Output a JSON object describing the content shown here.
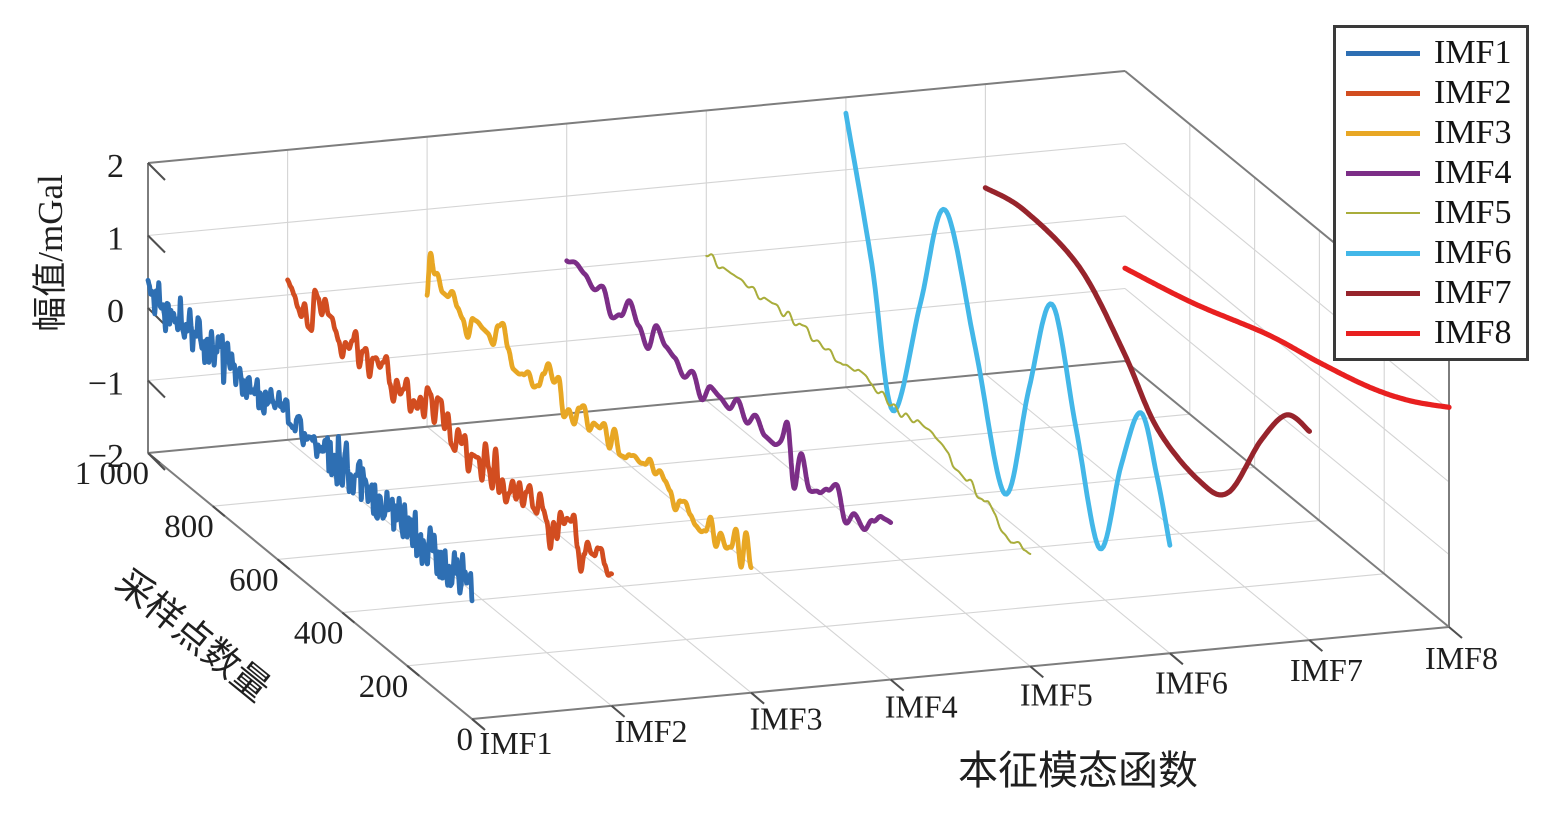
{
  "figure": {
    "background": "#ffffff"
  },
  "chart_data": {
    "type": "line3d_waterfall",
    "title": "",
    "grid": true,
    "x_axis": {
      "label": "本征模态函数",
      "categories": [
        "IMF1",
        "IMF2",
        "IMF3",
        "IMF4",
        "IMF5",
        "IMF6",
        "IMF7",
        "IMF8"
      ],
      "positions": [
        1,
        2,
        3,
        4,
        5,
        6,
        7,
        8
      ],
      "range": [
        1,
        8
      ]
    },
    "y_axis": {
      "label": "采样点数量",
      "range": [
        0,
        1000
      ],
      "ticks": [
        0,
        200,
        400,
        600,
        800,
        1000
      ],
      "tick_labels": [
        "0",
        "200",
        "400",
        "600",
        "800",
        "1 000"
      ]
    },
    "z_axis": {
      "label": "幅值/mGal",
      "range": [
        -2,
        2
      ],
      "ticks": [
        2,
        1,
        0,
        -1,
        -2
      ],
      "tick_labels": [
        "2",
        "1",
        "0",
        "−1",
        "−2"
      ]
    },
    "legend": {
      "position": "top-right",
      "border_color": "#3a3a3a",
      "entries": [
        "IMF1",
        "IMF2",
        "IMF3",
        "IMF4",
        "IMF5",
        "IMF6",
        "IMF7",
        "IMF8"
      ]
    },
    "colors": {
      "grid": "#d4d4d4",
      "box_edge": "#7d7d7d",
      "tick_mark": "#4f4f4f",
      "text": "#1f1f1f"
    },
    "series": [
      {
        "name": "IMF1",
        "x": 1,
        "color": "#2e6fb3",
        "line_width": 4.8,
        "kind": "noise",
        "mean_points": [
          [
            0,
            -0.15
          ],
          [
            1000,
            0.24
          ]
        ],
        "noise": {
          "seed": 101,
          "knots": 240,
          "amp": 0.3,
          "env_seed": 201,
          "env_knots": 8
        },
        "spikes": []
      },
      {
        "name": "IMF2",
        "x": 2,
        "color": "#d24d20",
        "line_width": 4.8,
        "kind": "noise",
        "mean_points": [
          [
            0,
            -0.25
          ],
          [
            1000,
            0.15
          ]
        ],
        "noise": {
          "seed": 102,
          "knots": 95,
          "amp": 0.33,
          "env_seed": 202,
          "env_knots": 7
        },
        "spikes": []
      },
      {
        "name": "IMF3",
        "x": 3,
        "color": "#e8a724",
        "line_width": 4.8,
        "kind": "noise",
        "mean_points": [
          [
            0,
            -0.16
          ],
          [
            1000,
            0.05
          ]
        ],
        "noise": {
          "seed": 103,
          "knots": 64,
          "amp": 0.26,
          "env_seed": 203,
          "env_knots": 7
        },
        "spikes": [
          [
            990,
            0.38,
            9
          ],
          [
            1000,
            -0.34,
            6
          ]
        ]
      },
      {
        "name": "IMF4",
        "x": 4,
        "color": "#7c2e87",
        "line_width": 4.8,
        "kind": "noise",
        "mean_points": [
          [
            0,
            -0.12
          ],
          [
            1000,
            0.0
          ]
        ],
        "noise": {
          "seed": 104,
          "knots": 36,
          "amp": 0.24,
          "env_seed": 204,
          "env_knots": 6
        },
        "spikes": [
          [
            318,
            0.42,
            13
          ],
          [
            298,
            -0.48,
            13
          ]
        ]
      },
      {
        "name": "IMF5",
        "x": 5,
        "color": "#a9ad3b",
        "line_width": 2.0,
        "kind": "noise",
        "mean_points": [
          [
            0,
            -0.4
          ],
          [
            60,
            -0.54
          ],
          [
            130,
            -0.28
          ],
          [
            300,
            0.02
          ],
          [
            520,
            0.1
          ],
          [
            780,
            0.07
          ],
          [
            1000,
            0.02
          ]
        ],
        "noise": {
          "seed": 105,
          "knots": 55,
          "amp": 0.075,
          "env_seed": 205,
          "env_knots": 5
        },
        "spikes": []
      },
      {
        "name": "IMF6",
        "x": 6,
        "color": "#43b7e8",
        "line_width": 4.8,
        "kind": "smooth",
        "points": [
          [
            0,
            -0.51
          ],
          [
            40,
            0.3
          ],
          [
            90,
            0.99
          ],
          [
            150,
            0.05
          ],
          [
            216,
            -1.35
          ],
          [
            290,
            0.05
          ],
          [
            364,
            1.48
          ],
          [
            435,
            0.05
          ],
          [
            509,
            -1.67
          ],
          [
            600,
            0.0
          ],
          [
            694,
            1.57
          ],
          [
            770,
            0.0
          ],
          [
            855,
            -1.79
          ],
          [
            920,
            0.0
          ],
          [
            1000,
            1.78
          ]
        ]
      },
      {
        "name": "IMF7",
        "x": 7,
        "color": "#97242c",
        "line_width": 5.2,
        "kind": "smooth",
        "points": [
          [
            0,
            0.88
          ],
          [
            70,
            0.85
          ],
          [
            150,
            0.2
          ],
          [
            250,
            -0.88
          ],
          [
            340,
            -1.05
          ],
          [
            470,
            -0.8
          ],
          [
            575,
            -0.12
          ],
          [
            710,
            0.54
          ],
          [
            880,
            0.7
          ],
          [
            1000,
            0.57
          ]
        ]
      },
      {
        "name": "IMF8",
        "x": 8,
        "color": "#e82020",
        "line_width": 5.2,
        "kind": "smooth",
        "points": [
          [
            0,
            1.03
          ],
          [
            120,
            0.68
          ],
          [
            244,
            0.41
          ],
          [
            400,
            0.18
          ],
          [
            560,
            -0.02
          ],
          [
            790,
            -0.43
          ],
          [
            1000,
            -0.72
          ]
        ]
      }
    ]
  }
}
